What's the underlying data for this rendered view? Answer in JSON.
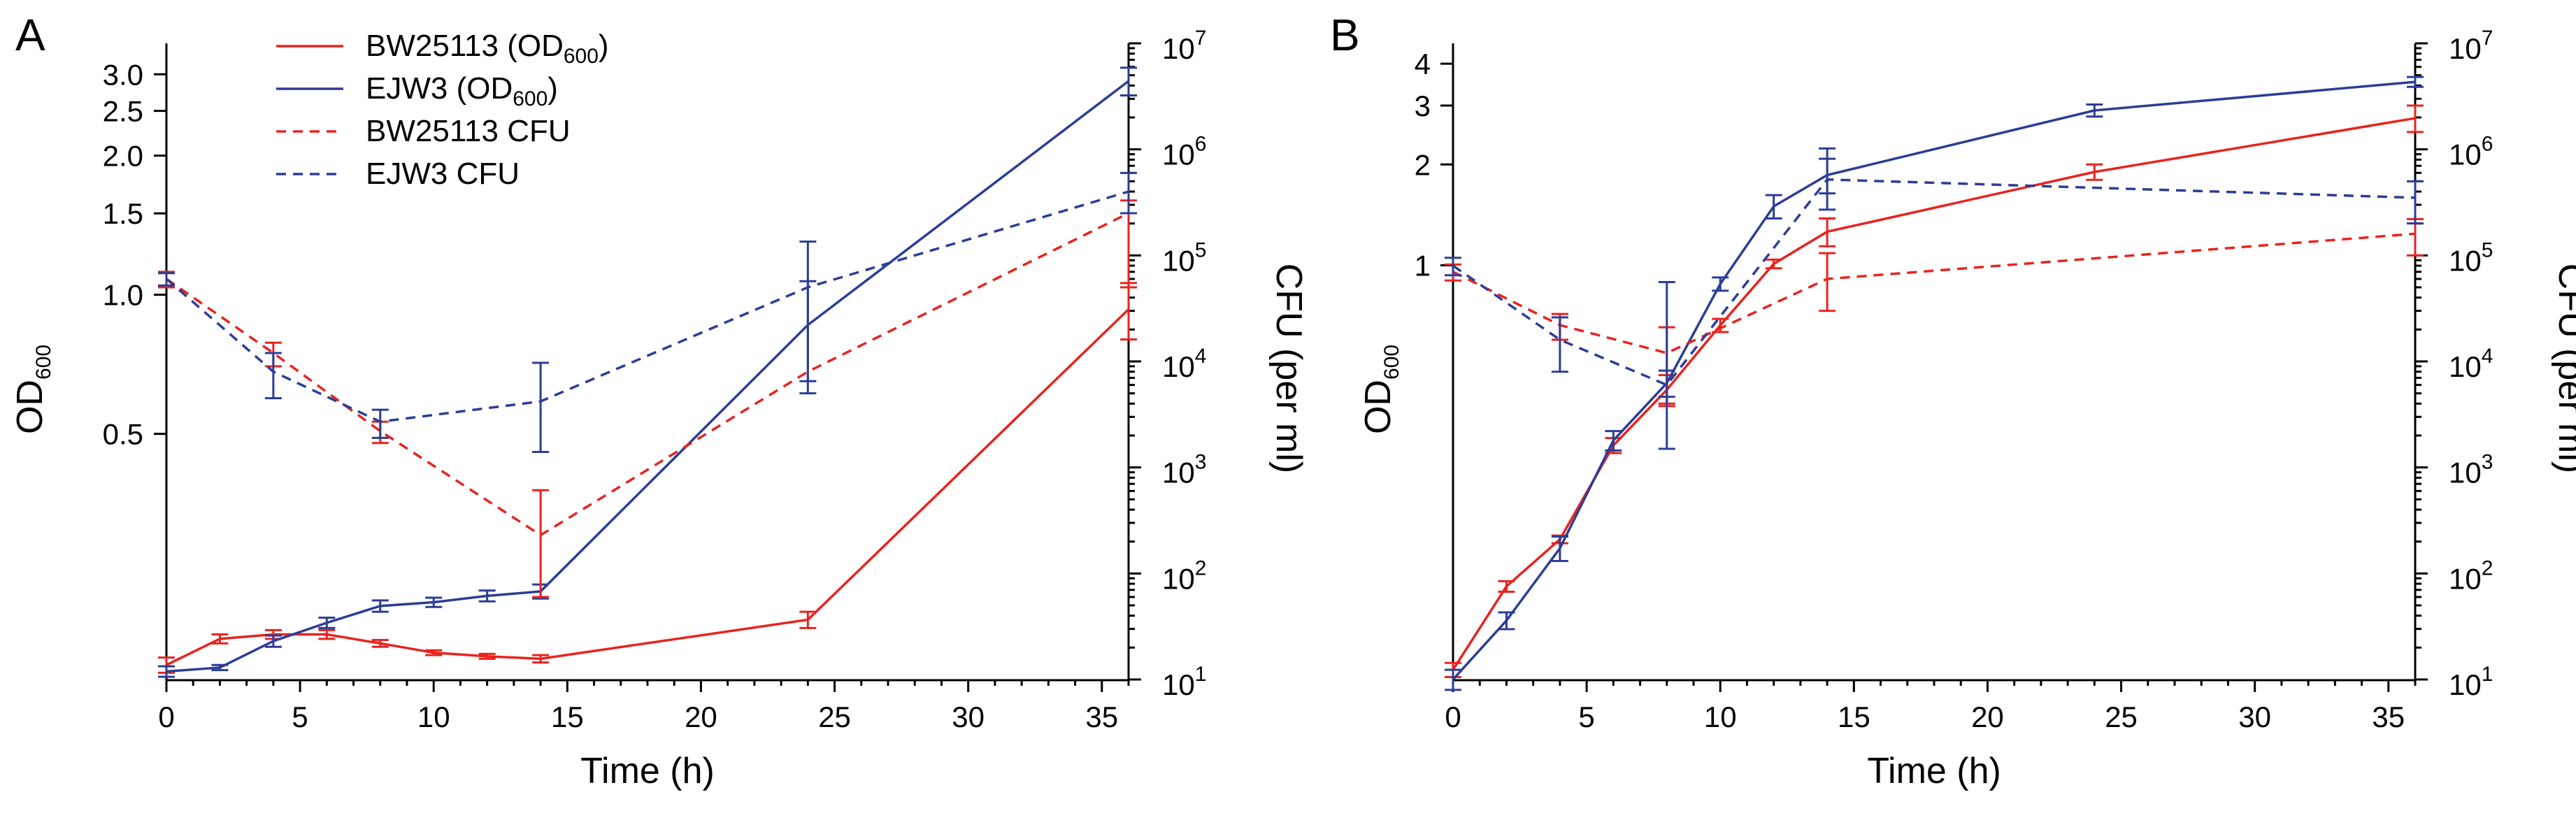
{
  "colors": {
    "bw": "#e8231f",
    "ejw": "#2c3d96"
  },
  "chart_data": [
    {
      "type": "line",
      "panel_label": "A",
      "xlabel": "Time (h)",
      "ylabel_left": {
        "main": "OD",
        "sub": "600"
      },
      "ylabel_right": "CFU (per ml)",
      "xlim": [
        0,
        36
      ],
      "xticks": [
        0,
        5,
        10,
        15,
        20,
        25,
        30,
        35
      ],
      "xtick_labels": [
        "0",
        "5",
        "10",
        "15",
        "20",
        "25",
        "30",
        "35"
      ],
      "ylim_left": [
        0.147,
        3.5
      ],
      "yticks_left": [
        0.5,
        1.0,
        1.5,
        2.0,
        2.5,
        3.0
      ],
      "ytick_labels_left": [
        "0.5",
        "1.0",
        "1.5",
        "2.0",
        "2.5",
        "3.0"
      ],
      "ylim_right": [
        10,
        10000000
      ],
      "yticks_right_labels": [
        {
          "base": "10",
          "exp": "1"
        },
        {
          "base": "10",
          "exp": "2"
        },
        {
          "base": "10",
          "exp": "3"
        },
        {
          "base": "10",
          "exp": "4"
        },
        {
          "base": "10",
          "exp": "5"
        },
        {
          "base": "10",
          "exp": "6"
        },
        {
          "base": "10",
          "exp": "7"
        }
      ],
      "legend": [
        {
          "name": "BW25113 (OD",
          "sub": "600",
          "tail": ")"
        },
        {
          "name": "EJW3 (OD",
          "sub": "600",
          "tail": ")"
        },
        {
          "name": "BW25113 CFU",
          "sub": "",
          "tail": ""
        },
        {
          "name": "EJW3 CFU",
          "sub": "",
          "tail": ""
        }
      ],
      "series": [
        {
          "name": "BW25113 (OD600)",
          "axis": "left",
          "style": "solid",
          "color": "bw",
          "x": [
            0,
            2,
            4,
            6,
            8,
            10,
            12,
            14,
            24,
            36
          ],
          "y": [
            0.158,
            0.18,
            0.184,
            0.184,
            0.176,
            0.168,
            0.165,
            0.163,
            0.198,
            0.93
          ],
          "err": [
            0.006,
            0.004,
            0.004,
            0.004,
            0.003,
            0.002,
            0.002,
            0.003,
            0.008,
            0.13
          ]
        },
        {
          "name": "EJW3 (OD600)",
          "axis": "left",
          "style": "solid",
          "color": "ejw",
          "x": [
            0,
            2,
            4,
            6,
            8,
            10,
            12,
            14,
            24,
            36
          ],
          "y": [
            0.153,
            0.156,
            0.178,
            0.195,
            0.212,
            0.216,
            0.223,
            0.228,
            0.86,
            2.9
          ],
          "err": [
            0.004,
            0.002,
            0.005,
            0.005,
            0.006,
            0.005,
            0.006,
            0.008,
            0.21,
            0.2
          ]
        },
        {
          "name": "BW25113 CFU",
          "axis": "right",
          "style": "dashed",
          "color": "bw",
          "x": [
            0,
            4,
            8,
            14,
            24,
            36
          ],
          "y": [
            60000,
            12000,
            2200,
            230,
            8000,
            250000
          ],
          "err_lo": [
            10000,
            3000,
            500,
            170,
            0,
            200000
          ],
          "err_hi": [
            10000,
            3000,
            500,
            380,
            0,
            80000
          ]
        },
        {
          "name": "EJW3 CFU",
          "axis": "right",
          "style": "dashed",
          "color": "ejw",
          "x": [
            0,
            4,
            8,
            14,
            24,
            36
          ],
          "y": [
            60000,
            8000,
            2700,
            4200,
            50000,
            400000
          ],
          "err_lo": [
            8000,
            3500,
            800,
            2800,
            45000,
            150000
          ],
          "err_hi": [
            8000,
            4000,
            800,
            5500,
            85000,
            200000
          ]
        }
      ]
    },
    {
      "type": "line",
      "panel_label": "B",
      "xlabel": "Time (h)",
      "ylabel_left": {
        "main": "OD",
        "sub": "600"
      },
      "ylabel_right": "CFU (per ml)",
      "xlim": [
        0,
        36
      ],
      "xticks": [
        0,
        5,
        10,
        15,
        20,
        25,
        30,
        35
      ],
      "xtick_labels": [
        "0",
        "5",
        "10",
        "15",
        "20",
        "25",
        "30",
        "35"
      ],
      "ylim_left": [
        0.058,
        4.6
      ],
      "yticks_left": [
        1,
        2,
        3,
        4
      ],
      "ytick_labels_left": [
        "1",
        "2",
        "3",
        "4"
      ],
      "ylim_right": [
        10,
        10000000
      ],
      "yticks_right_labels": [
        {
          "base": "10",
          "exp": "1"
        },
        {
          "base": "10",
          "exp": "2"
        },
        {
          "base": "10",
          "exp": "3"
        },
        {
          "base": "10",
          "exp": "4"
        },
        {
          "base": "10",
          "exp": "5"
        },
        {
          "base": "10",
          "exp": "6"
        },
        {
          "base": "10",
          "exp": "7"
        }
      ],
      "series": [
        {
          "name": "BW25113 (OD600)",
          "axis": "left",
          "style": "solid",
          "color": "bw",
          "x": [
            0,
            2,
            4,
            6,
            8,
            10,
            12,
            14,
            24,
            36
          ],
          "y": [
            0.062,
            0.11,
            0.152,
            0.29,
            0.425,
            0.662,
            1.01,
            1.26,
            1.9,
            2.75
          ],
          "err": [
            0.003,
            0.004,
            0.004,
            0.015,
            0.045,
            0.03,
            0.03,
            0.12,
            0.1,
            0.25
          ]
        },
        {
          "name": "EJW3 (OD600)",
          "axis": "left",
          "style": "solid",
          "color": "ejw",
          "x": [
            0,
            2,
            4,
            6,
            8,
            10,
            12,
            14,
            24,
            36
          ],
          "y": [
            0.058,
            0.087,
            0.143,
            0.3,
            0.445,
            0.88,
            1.5,
            1.86,
            2.9,
            3.53
          ],
          "err": [
            0.004,
            0.005,
            0.012,
            0.02,
            0.04,
            0.04,
            0.12,
            0.22,
            0.12,
            0.12
          ]
        },
        {
          "name": "BW25113 CFU",
          "axis": "right",
          "style": "dashed",
          "color": "bw",
          "x": [
            0,
            4,
            8,
            14,
            36
          ],
          "y": [
            70000,
            22000,
            12000,
            60000,
            160000
          ],
          "err_lo": [
            12000,
            6000,
            8000,
            30000,
            60000
          ],
          "err_hi": [
            12000,
            6000,
            9000,
            45000,
            60000
          ]
        },
        {
          "name": "EJW3 CFU",
          "axis": "right",
          "style": "dashed",
          "color": "ejw",
          "x": [
            0,
            4,
            8,
            14,
            36
          ],
          "y": [
            80000,
            16000,
            6000,
            520000,
            350000
          ],
          "err_lo": [
            15000,
            8000,
            4500,
            250000,
            150000
          ],
          "err_hi": [
            15000,
            10000,
            50000,
            500000,
            150000
          ]
        }
      ]
    }
  ]
}
